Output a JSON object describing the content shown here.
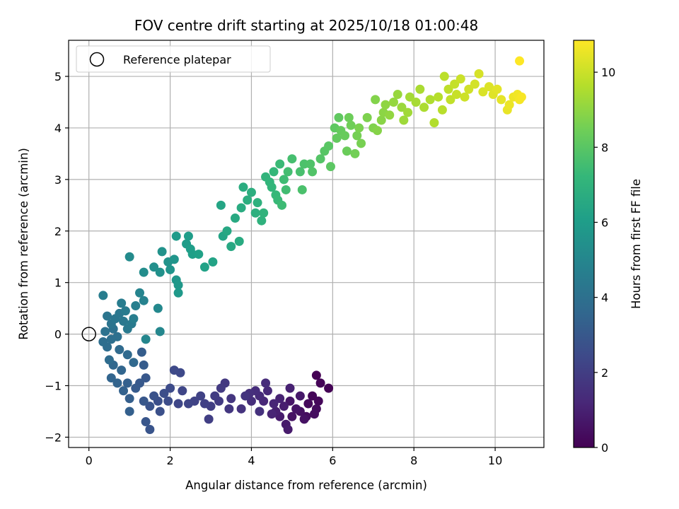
{
  "chart_data": {
    "type": "scatter",
    "title": "FOV centre drift starting at 2025/10/18 01:00:48",
    "xlabel": "Angular distance from reference (arcmin)",
    "ylabel": "Rotation from reference (arcmin)",
    "xlim": [
      -0.5,
      11.2
    ],
    "ylim": [
      -2.2,
      5.7
    ],
    "xticks": [
      0,
      2,
      4,
      6,
      8,
      10
    ],
    "yticks": [
      -2,
      -1,
      0,
      1,
      2,
      3,
      4,
      5
    ],
    "grid": true,
    "legend": {
      "position": "top-left",
      "entries": [
        "Reference platepar"
      ]
    },
    "reference_point": {
      "x": 0,
      "y": 0
    },
    "colorbar": {
      "label": "Hours from first FF file",
      "range": [
        0,
        10.85
      ],
      "ticks": [
        0,
        2,
        4,
        6,
        8,
        10
      ],
      "colormap": "viridis",
      "colors": [
        "#440154",
        "#482878",
        "#3e4989",
        "#31688e",
        "#26828e",
        "#1f9e89",
        "#35b779",
        "#6ece58",
        "#b5de2b",
        "#fde725"
      ]
    },
    "series": [
      {
        "points": [
          [
            5.6,
            -0.8,
            0.0
          ],
          [
            5.9,
            -1.05,
            0.05
          ],
          [
            5.7,
            -0.95,
            0.1
          ],
          [
            5.5,
            -1.2,
            0.15
          ],
          [
            5.65,
            -1.3,
            0.2
          ],
          [
            5.4,
            -1.35,
            0.25
          ],
          [
            5.6,
            -1.45,
            0.3
          ],
          [
            5.35,
            -1.6,
            0.35
          ],
          [
            5.55,
            -1.55,
            0.4
          ],
          [
            5.2,
            -1.5,
            0.45
          ],
          [
            5.3,
            -1.65,
            0.5
          ],
          [
            5.0,
            -1.6,
            0.55
          ],
          [
            5.1,
            -1.45,
            0.6
          ],
          [
            4.95,
            -1.3,
            0.65
          ],
          [
            5.2,
            -1.2,
            0.7
          ],
          [
            4.85,
            -1.75,
            0.75
          ],
          [
            4.9,
            -1.85,
            0.8
          ],
          [
            4.7,
            -1.6,
            0.85
          ],
          [
            4.8,
            -1.4,
            0.9
          ],
          [
            4.6,
            -1.5,
            0.95
          ],
          [
            4.95,
            -1.05,
            1.0
          ],
          [
            4.7,
            -1.25,
            1.05
          ],
          [
            4.5,
            -1.55,
            1.1
          ],
          [
            4.55,
            -1.35,
            1.15
          ],
          [
            4.3,
            -1.3,
            1.2
          ],
          [
            4.4,
            -1.1,
            1.25
          ],
          [
            4.2,
            -1.2,
            1.3
          ],
          [
            4.35,
            -0.95,
            1.35
          ],
          [
            4.1,
            -1.1,
            1.4
          ],
          [
            4.0,
            -1.3,
            1.45
          ],
          [
            3.95,
            -1.15,
            1.5
          ],
          [
            4.2,
            -1.5,
            1.55
          ],
          [
            3.75,
            -1.45,
            1.6
          ],
          [
            3.85,
            -1.2,
            1.65
          ],
          [
            3.5,
            -1.25,
            1.7
          ],
          [
            3.45,
            -1.45,
            1.75
          ],
          [
            3.35,
            -0.95,
            1.8
          ],
          [
            3.25,
            -1.05,
            1.85
          ],
          [
            3.2,
            -1.3,
            1.9
          ],
          [
            3.1,
            -1.2,
            1.95
          ],
          [
            3.0,
            -1.4,
            2.0
          ],
          [
            2.95,
            -1.65,
            2.05
          ],
          [
            2.85,
            -1.35,
            2.1
          ],
          [
            2.75,
            -1.2,
            2.15
          ],
          [
            2.6,
            -1.3,
            2.2
          ],
          [
            2.45,
            -1.35,
            2.25
          ],
          [
            2.3,
            -1.1,
            2.3
          ],
          [
            2.2,
            -1.35,
            2.35
          ],
          [
            2.25,
            -0.75,
            2.4
          ],
          [
            2.1,
            -0.7,
            2.45
          ],
          [
            2.0,
            -1.05,
            2.5
          ],
          [
            1.95,
            -1.3,
            2.55
          ],
          [
            1.85,
            -1.15,
            2.6
          ],
          [
            1.7,
            -1.3,
            2.65
          ],
          [
            1.75,
            -1.5,
            2.7
          ],
          [
            1.6,
            -1.2,
            2.75
          ],
          [
            1.5,
            -1.4,
            2.8
          ],
          [
            1.5,
            -1.85,
            2.85
          ],
          [
            1.4,
            -1.7,
            2.9
          ],
          [
            1.35,
            -1.3,
            2.95
          ],
          [
            1.4,
            -0.85,
            3.0
          ],
          [
            1.25,
            -0.95,
            3.05
          ],
          [
            1.15,
            -1.05,
            3.1
          ],
          [
            1.35,
            -0.6,
            3.15
          ],
          [
            1.3,
            -0.35,
            3.2
          ],
          [
            1.0,
            -1.25,
            3.25
          ],
          [
            1.0,
            -1.5,
            3.3
          ],
          [
            0.95,
            -0.95,
            3.35
          ],
          [
            0.85,
            -1.1,
            3.4
          ],
          [
            0.7,
            -0.95,
            3.45
          ],
          [
            0.55,
            -0.85,
            3.5
          ],
          [
            0.8,
            -0.7,
            3.55
          ],
          [
            0.6,
            -0.6,
            3.6
          ],
          [
            1.1,
            -0.55,
            3.65
          ],
          [
            0.95,
            -0.4,
            3.7
          ],
          [
            0.75,
            -0.3,
            3.75
          ],
          [
            0.5,
            -0.5,
            3.8
          ],
          [
            0.45,
            -0.25,
            3.85
          ],
          [
            0.35,
            -0.15,
            3.9
          ],
          [
            0.55,
            -0.1,
            3.95
          ],
          [
            0.7,
            -0.05,
            4.0
          ],
          [
            0.6,
            0.1,
            4.05
          ],
          [
            0.4,
            0.05,
            4.1
          ],
          [
            0.55,
            0.2,
            4.15
          ],
          [
            0.45,
            0.35,
            4.2
          ],
          [
            0.65,
            0.3,
            4.25
          ],
          [
            0.75,
            0.4,
            4.3
          ],
          [
            0.85,
            0.25,
            4.35
          ],
          [
            0.95,
            0.1,
            4.4
          ],
          [
            1.05,
            0.2,
            4.45
          ],
          [
            0.9,
            0.45,
            4.5
          ],
          [
            0.8,
            0.6,
            4.55
          ],
          [
            0.35,
            0.75,
            4.6
          ],
          [
            1.1,
            0.3,
            4.65
          ],
          [
            1.15,
            0.55,
            4.7
          ],
          [
            1.35,
            0.65,
            4.8
          ],
          [
            1.25,
            0.8,
            4.9
          ],
          [
            1.4,
            -0.1,
            5.0
          ],
          [
            1.75,
            0.05,
            5.05
          ],
          [
            1.7,
            0.5,
            5.1
          ],
          [
            1.0,
            1.5,
            5.2
          ],
          [
            1.35,
            1.2,
            5.3
          ],
          [
            1.6,
            1.3,
            5.4
          ],
          [
            1.75,
            1.2,
            5.45
          ],
          [
            1.8,
            1.6,
            5.5
          ],
          [
            1.95,
            1.4,
            5.55
          ],
          [
            2.0,
            1.25,
            5.6
          ],
          [
            2.1,
            1.45,
            5.65
          ],
          [
            2.15,
            1.05,
            5.7
          ],
          [
            2.2,
            0.95,
            5.75
          ],
          [
            2.2,
            0.8,
            5.8
          ],
          [
            2.15,
            1.9,
            5.9
          ],
          [
            2.4,
            1.75,
            5.95
          ],
          [
            2.45,
            1.9,
            6.0
          ],
          [
            2.5,
            1.65,
            6.05
          ],
          [
            2.55,
            1.55,
            6.1
          ],
          [
            2.7,
            1.55,
            6.15
          ],
          [
            2.85,
            1.3,
            6.2
          ],
          [
            3.05,
            1.4,
            6.25
          ],
          [
            3.3,
            1.9,
            6.3
          ],
          [
            3.25,
            2.5,
            6.35
          ],
          [
            3.4,
            2.0,
            6.45
          ],
          [
            3.5,
            1.7,
            6.5
          ],
          [
            3.6,
            2.25,
            6.55
          ],
          [
            3.7,
            1.8,
            6.6
          ],
          [
            3.75,
            2.45,
            6.65
          ],
          [
            3.8,
            2.85,
            6.7
          ],
          [
            3.9,
            2.6,
            6.75
          ],
          [
            4.0,
            2.75,
            6.8
          ],
          [
            4.1,
            2.35,
            6.85
          ],
          [
            4.15,
            2.55,
            6.9
          ],
          [
            4.25,
            2.2,
            6.95
          ],
          [
            4.3,
            2.35,
            7.0
          ],
          [
            4.35,
            3.05,
            7.05
          ],
          [
            4.45,
            2.95,
            7.1
          ],
          [
            4.5,
            2.85,
            7.15
          ],
          [
            4.55,
            3.15,
            7.2
          ],
          [
            4.6,
            2.7,
            7.25
          ],
          [
            4.65,
            2.6,
            7.3
          ],
          [
            4.7,
            3.3,
            7.35
          ],
          [
            4.75,
            2.5,
            7.4
          ],
          [
            4.8,
            3.0,
            7.45
          ],
          [
            4.85,
            2.8,
            7.5
          ],
          [
            4.9,
            3.15,
            7.55
          ],
          [
            5.0,
            3.4,
            7.6
          ],
          [
            5.2,
            3.15,
            7.65
          ],
          [
            5.25,
            2.8,
            7.7
          ],
          [
            5.3,
            3.3,
            7.75
          ],
          [
            5.45,
            3.3,
            7.8
          ],
          [
            5.5,
            3.15,
            7.85
          ],
          [
            5.7,
            3.4,
            7.9
          ],
          [
            5.8,
            3.55,
            7.95
          ],
          [
            5.9,
            3.65,
            8.0
          ],
          [
            5.95,
            3.25,
            8.05
          ],
          [
            6.05,
            4.0,
            8.1
          ],
          [
            6.15,
            4.2,
            8.15
          ],
          [
            6.1,
            3.8,
            8.2
          ],
          [
            6.2,
            3.95,
            8.25
          ],
          [
            6.3,
            3.85,
            8.3
          ],
          [
            6.35,
            3.55,
            8.35
          ],
          [
            6.4,
            4.2,
            8.4
          ],
          [
            6.45,
            4.05,
            8.45
          ],
          [
            6.55,
            3.5,
            8.5
          ],
          [
            6.6,
            3.85,
            8.55
          ],
          [
            6.7,
            3.7,
            8.6
          ],
          [
            6.65,
            4.0,
            8.65
          ],
          [
            6.85,
            4.2,
            8.7
          ],
          [
            7.0,
            4.0,
            8.75
          ],
          [
            7.05,
            4.55,
            8.8
          ],
          [
            7.1,
            3.95,
            8.85
          ],
          [
            7.2,
            4.15,
            8.9
          ],
          [
            7.25,
            4.3,
            8.95
          ],
          [
            7.3,
            4.45,
            9.0
          ],
          [
            7.4,
            4.25,
            9.05
          ],
          [
            7.5,
            4.5,
            9.1
          ],
          [
            7.6,
            4.65,
            9.15
          ],
          [
            7.7,
            4.4,
            9.2
          ],
          [
            7.75,
            4.15,
            9.25
          ],
          [
            7.85,
            4.3,
            9.3
          ],
          [
            7.9,
            4.6,
            9.35
          ],
          [
            8.05,
            4.5,
            9.4
          ],
          [
            8.15,
            4.75,
            9.45
          ],
          [
            8.25,
            4.4,
            9.5
          ],
          [
            8.4,
            4.55,
            9.55
          ],
          [
            8.5,
            4.1,
            9.6
          ],
          [
            8.6,
            4.6,
            9.65
          ],
          [
            8.7,
            4.35,
            9.7
          ],
          [
            8.75,
            5.0,
            9.75
          ],
          [
            8.85,
            4.75,
            9.8
          ],
          [
            8.9,
            4.55,
            9.85
          ],
          [
            9.0,
            4.85,
            9.9
          ],
          [
            9.05,
            4.65,
            9.95
          ],
          [
            9.15,
            4.95,
            10.0
          ],
          [
            9.25,
            4.6,
            10.05
          ],
          [
            9.35,
            4.75,
            10.1
          ],
          [
            9.5,
            4.85,
            10.15
          ],
          [
            9.6,
            5.05,
            10.2
          ],
          [
            9.7,
            4.7,
            10.25
          ],
          [
            9.85,
            4.8,
            10.3
          ],
          [
            9.95,
            4.65,
            10.35
          ],
          [
            10.05,
            4.75,
            10.4
          ],
          [
            10.15,
            4.55,
            10.45
          ],
          [
            10.3,
            4.35,
            10.5
          ],
          [
            10.35,
            4.45,
            10.55
          ],
          [
            10.45,
            4.6,
            10.6
          ],
          [
            10.55,
            4.65,
            10.65
          ],
          [
            10.6,
            4.55,
            10.7
          ],
          [
            10.65,
            4.6,
            10.75
          ],
          [
            10.6,
            5.3,
            10.85
          ]
        ]
      }
    ]
  }
}
